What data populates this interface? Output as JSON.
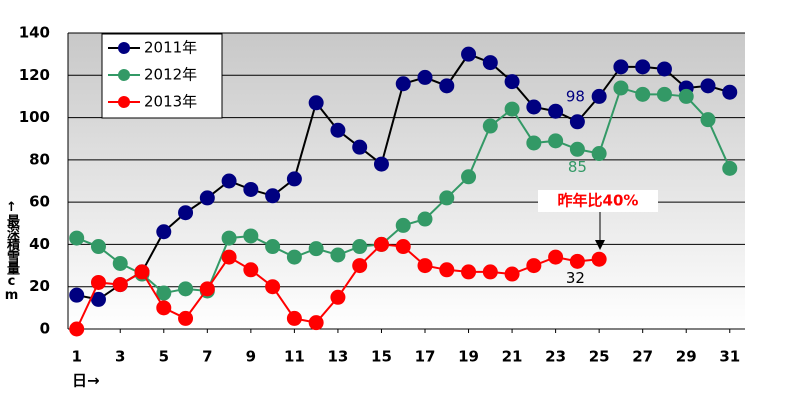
{
  "chart_data": {
    "type": "line",
    "y_label": "↑最深積雪量cm",
    "x_label": "日→",
    "annotation": "昨年比40%",
    "x": [
      1,
      2,
      3,
      4,
      5,
      6,
      7,
      8,
      9,
      10,
      11,
      12,
      13,
      14,
      15,
      16,
      17,
      18,
      19,
      20,
      21,
      22,
      23,
      24,
      25,
      26,
      27,
      28,
      29,
      30,
      31
    ],
    "series": [
      {
        "name": "2011年",
        "color": "#000080",
        "line_color": "#000000",
        "values": [
          16,
          14,
          21,
          27,
          46,
          55,
          62,
          70,
          66,
          63,
          71,
          107,
          94,
          86,
          78,
          116,
          119,
          115,
          130,
          126,
          117,
          105,
          103,
          98,
          110,
          124,
          124,
          123,
          114,
          115,
          112
        ]
      },
      {
        "name": "2012年",
        "color": "#339966",
        "line_color": "#339966",
        "values": [
          43,
          39,
          31,
          26,
          17,
          19,
          18,
          43,
          44,
          39,
          34,
          38,
          35,
          39,
          40,
          49,
          52,
          62,
          72,
          96,
          104,
          88,
          89,
          85,
          83,
          114,
          111,
          111,
          110,
          99,
          76
        ]
      },
      {
        "name": "2013年",
        "color": "#ff0000",
        "line_color": "#ff0000",
        "values": [
          0,
          22,
          21,
          27,
          10,
          5,
          19,
          34,
          28,
          20,
          5,
          3,
          15,
          30,
          40,
          39,
          30,
          28,
          27,
          27,
          26,
          30,
          34,
          32,
          33,
          null,
          null,
          null,
          null,
          null,
          null
        ]
      }
    ],
    "xlim": [
      0.6,
      31.7
    ],
    "xticks": [
      1,
      3,
      5,
      7,
      9,
      11,
      13,
      15,
      17,
      19,
      21,
      23,
      25,
      27,
      29,
      31
    ],
    "ylim": [
      0,
      140
    ],
    "yticks": [
      0,
      20,
      40,
      60,
      80,
      100,
      120,
      140
    ],
    "grid": true,
    "legend": "upper left"
  }
}
